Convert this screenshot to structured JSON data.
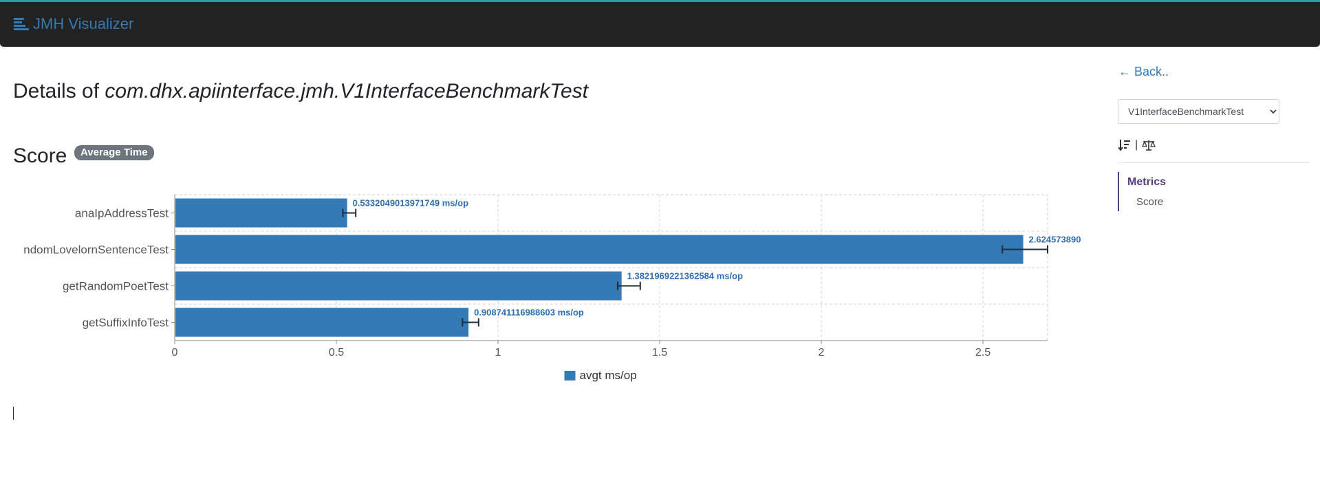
{
  "navbar": {
    "brand": "JMH Visualizer",
    "icon": "list-bars-icon"
  },
  "page": {
    "title_prefix": "Details of ",
    "class_name": "com.dhx.apiinterface.jmh.V1InterfaceBenchmarkTest"
  },
  "section": {
    "heading": "Score",
    "badge": "Average Time"
  },
  "sidebar": {
    "back_label": "← Back..",
    "select_value": "V1InterfaceBenchmarkTest",
    "tools": [
      "sort-icon",
      "balance-scale-icon"
    ],
    "tool_separator": "|",
    "metrics_heading": "Metrics",
    "metrics_items": [
      "Score"
    ]
  },
  "colors": {
    "bar": "#337ab7",
    "label": "#2d6fb4",
    "error_bar": "#1f2d3d",
    "nav_accent": "#563d7c"
  },
  "chart_data": {
    "type": "bar",
    "orientation": "horizontal",
    "categories": [
      "anaIpAddressTest",
      "ndomLovelornSentenceTest",
      "getRandomPoetTest",
      "getSuffixInfoTest"
    ],
    "series": [
      {
        "name": "avgt ms/op",
        "values": [
          0.5332049013971749,
          2.62457389,
          1.3821969221362584,
          0.908741116988603
        ],
        "error_low": [
          0.52,
          2.56,
          1.37,
          0.89
        ],
        "error_high": [
          0.56,
          2.7,
          1.44,
          0.94
        ],
        "labels": [
          "0.5332049013971749 ms/op",
          "2.624573890",
          "1.3821969221362584 ms/op",
          "0.908741116988603 ms/op"
        ]
      }
    ],
    "xlim": [
      0,
      2.7
    ],
    "xticks": [
      0,
      0.5,
      1,
      1.5,
      2,
      2.5
    ],
    "xtick_labels": [
      "0",
      "0.5",
      "1",
      "1.5",
      "2",
      "2.5"
    ],
    "grid": true,
    "legend": "bottom-center",
    "legend_label": "avgt ms/op"
  }
}
